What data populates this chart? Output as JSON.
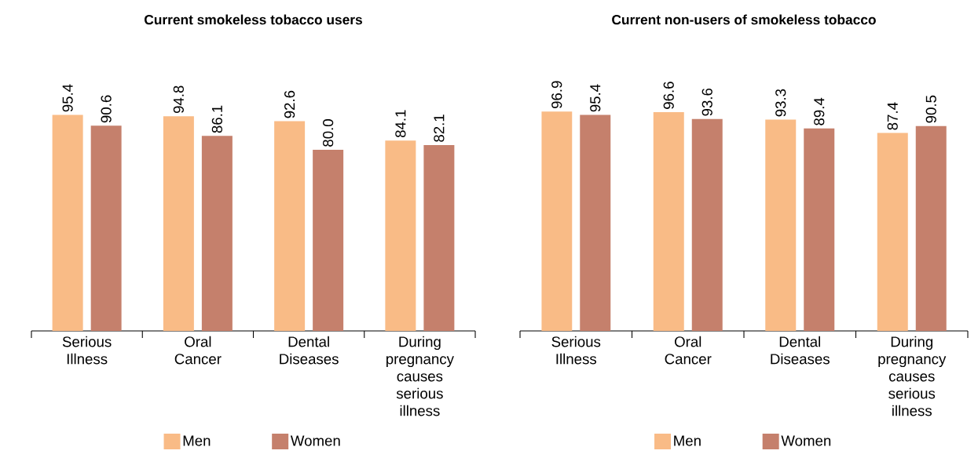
{
  "chart_data": [
    {
      "type": "bar",
      "title": "Current smokeless tobacco users",
      "categories": [
        "Serious Illness",
        "Oral Cancer",
        "Dental Diseases",
        "During pregnancy causes serious illness"
      ],
      "series": [
        {
          "name": "Men",
          "color": "#f9bb86",
          "values": [
            95.4,
            94.8,
            92.6,
            84.1
          ],
          "value_labels": [
            "95.4",
            "94.8",
            "92.6",
            "84.1"
          ]
        },
        {
          "name": "Women",
          "color": "#c5806c",
          "values": [
            90.6,
            86.1,
            80.0,
            82.1
          ],
          "value_labels": [
            "90.6",
            "86.1",
            "80.0",
            "82.1"
          ]
        }
      ],
      "legend": "bottom"
    },
    {
      "type": "bar",
      "title": "Current non-users of smokeless tobacco",
      "categories": [
        "Serious Illness",
        "Oral Cancer",
        "Dental Diseases",
        "During pregnancy causes serious illness"
      ],
      "series": [
        {
          "name": "Men",
          "color": "#f9bb86",
          "values": [
            96.9,
            96.6,
            93.3,
            87.4
          ],
          "value_labels": [
            "96.9",
            "96.6",
            "93.3",
            "87.4"
          ]
        },
        {
          "name": "Women",
          "color": "#c5806c",
          "values": [
            95.4,
            93.6,
            89.4,
            90.5
          ],
          "value_labels": [
            "95.4",
            "93.6",
            "89.4",
            "90.5"
          ]
        }
      ],
      "legend": "bottom"
    }
  ]
}
